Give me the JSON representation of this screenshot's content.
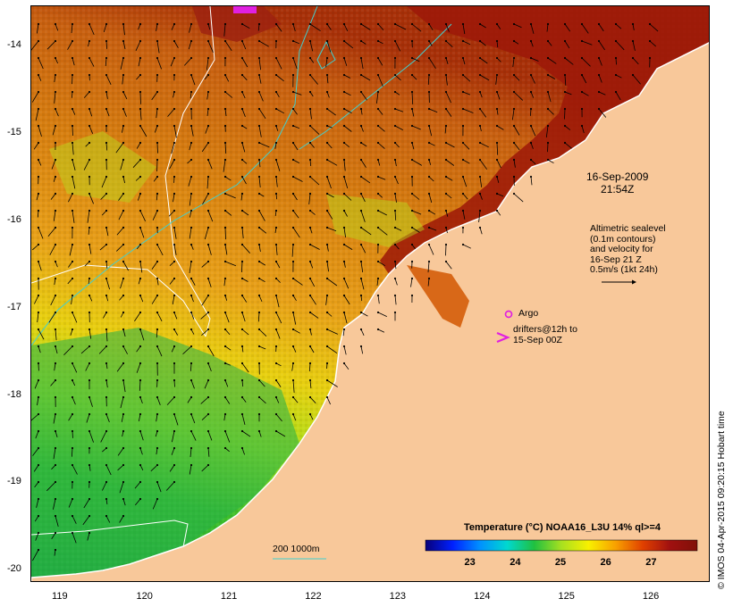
{
  "map": {
    "lon_ticks": [
      "119",
      "120",
      "121",
      "122",
      "123",
      "124",
      "125",
      "126"
    ],
    "lat_ticks": [
      "-14",
      "-15",
      "-16",
      "-17",
      "-18",
      "-19",
      "-20"
    ],
    "lon_range": [
      118.65,
      126.7
    ],
    "lat_range": [
      -13.55,
      -20.15
    ]
  },
  "date": {
    "line1": "16-Sep-2009",
    "line2": "21:54Z"
  },
  "altimetry": {
    "lines": [
      "Altimetric sealevel",
      "(0.1m contours)",
      "and velocity for",
      "16-Sep 21 Z",
      "0.5m/s (1kt 24h)"
    ]
  },
  "legend": {
    "argo_label": "Argo",
    "drifter_line1": "drifters@12h to",
    "drifter_line2": "15-Sep 00Z",
    "depth_label": "200  1000m"
  },
  "colorbar": {
    "title": "Temperature (°C) NOAA16_L3U 14% ql>=4",
    "ticks": [
      "23",
      "24",
      "25",
      "26",
      "27"
    ],
    "range": [
      22.0,
      28.0
    ]
  },
  "credit": "© IMOS 04-Apr-2015 09:20:15 Hobart time",
  "colors": {
    "land": "#f8c89a",
    "argo": "#e020e0",
    "contour_200": "#40d0d0",
    "contour_sea": "#ffffff"
  }
}
